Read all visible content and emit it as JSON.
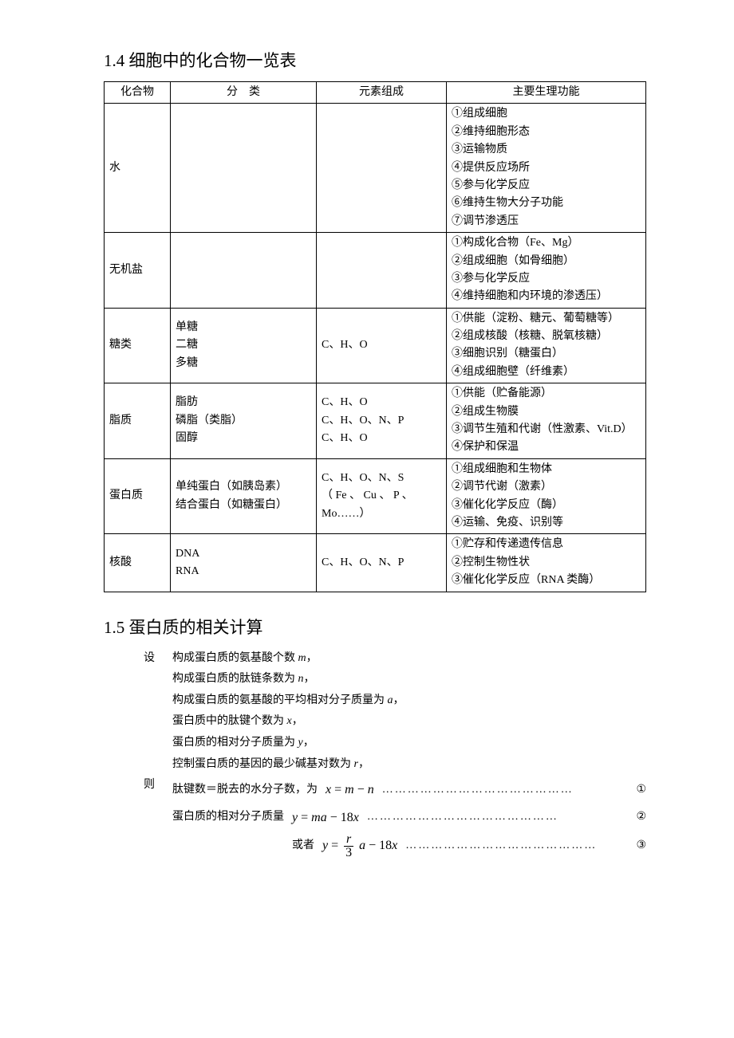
{
  "section1": {
    "title": "1.4 细胞中的化合物一览表",
    "headers": [
      "化合物",
      "分　类",
      "元素组成",
      "主要生理功能"
    ],
    "rows": [
      {
        "compound": "水",
        "classification": "",
        "elements": "",
        "functions": [
          "①组成细胞",
          "②维持细胞形态",
          "③运输物质",
          "④提供反应场所",
          "⑤参与化学反应",
          "⑥维持生物大分子功能",
          "⑦调节渗透压"
        ]
      },
      {
        "compound": "无机盐",
        "classification": "",
        "elements": "",
        "functions": [
          "①构成化合物（Fe、Mg）",
          "②组成细胞（如骨细胞）",
          "③参与化学反应",
          "④维持细胞和内环境的渗透压）"
        ]
      },
      {
        "compound": "糖类",
        "classification": "单糖\n二糖\n多糖",
        "elements": "C、H、O",
        "functions": [
          "①供能（淀粉、糖元、葡萄糖等）",
          "②组成核酸（核糖、脱氧核糖）",
          "③细胞识别（糖蛋白）",
          "④组成细胞壁（纤维素）"
        ]
      },
      {
        "compound": "脂质",
        "classification": "脂肪\n磷脂（类脂）\n固醇",
        "elements": "C、H、O\nC、H、O、N、P\nC、H、O",
        "functions": [
          "①供能（贮备能源）",
          "②组成生物膜",
          "③调节生殖和代谢（性激素、Vit.D）",
          "④保护和保温"
        ]
      },
      {
        "compound": "蛋白质",
        "classification": "单纯蛋白（如胰岛素）\n结合蛋白（如糖蛋白）",
        "elements": "C、H、O、N、S\n（ Fe 、 Cu 、 P 、Mo……）",
        "functions": [
          "①组成细胞和生物体",
          "②调节代谢（激素）",
          "③催化化学反应（酶）",
          "④运输、免疫、识别等"
        ]
      },
      {
        "compound": "核酸",
        "classification": "DNA\nRNA",
        "elements": "C、H、O、N、P",
        "functions": [
          "①贮存和传递遗传信息",
          "②控制生物性状",
          "③催化化学反应（RNA 类酶）"
        ]
      }
    ]
  },
  "section2": {
    "title": "1.5 蛋白质的相关计算",
    "let_label": "设",
    "then_label": "则",
    "defs": [
      {
        "pre": "构成蛋白质的氨基酸个数 ",
        "var": "m",
        "post": "，"
      },
      {
        "pre": "构成蛋白质的肽链条数为 ",
        "var": "n",
        "post": "，"
      },
      {
        "pre": "构成蛋白质的氨基酸的平均相对分子质量为 ",
        "var": "a",
        "post": "，"
      },
      {
        "pre": "蛋白质中的肽键个数为 ",
        "var": "x",
        "post": "，"
      },
      {
        "pre": "蛋白质的相对分子质量为 ",
        "var": "y",
        "post": "，"
      },
      {
        "pre": "控制蛋白质的基因的最少碱基对数为 ",
        "var": "r",
        "post": "，"
      }
    ],
    "eq1": {
      "lead": "肽键数＝脱去的水分子数，为",
      "formula_html": "x = m − n",
      "num": "①"
    },
    "eq2": {
      "lead": "蛋白质的相对分子质量",
      "formula_html": "y = ma − 18x",
      "num": "②"
    },
    "eq3": {
      "lead": "或者",
      "num": "③",
      "frac_num": "r",
      "frac_den": "3",
      "tail": "a − 18x"
    },
    "dots": "………………………………………"
  }
}
